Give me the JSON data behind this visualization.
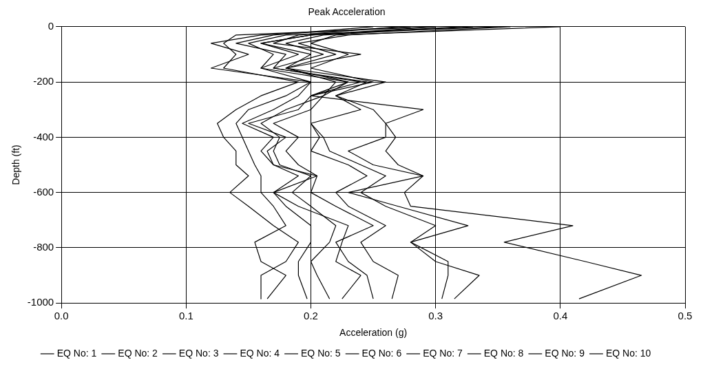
{
  "chart_data": {
    "type": "line",
    "title": "Peak Acceleration",
    "xlabel": "Acceleration (g)",
    "ylabel": "Depth (ft)",
    "xlim": [
      0,
      0.5
    ],
    "xticks": [
      {
        "value": 0,
        "label": "0.0"
      },
      {
        "value": 0.1,
        "label": "0.1"
      },
      {
        "value": 0.2,
        "label": "0.2"
      },
      {
        "value": 0.3,
        "label": "0.3"
      },
      {
        "value": 0.4,
        "label": "0.4"
      },
      {
        "value": 0.5,
        "label": "0.5"
      }
    ],
    "ylim": [
      -1000,
      0
    ],
    "yticks": [
      -1000,
      -800,
      -600,
      -400,
      -200,
      0
    ],
    "grid": true,
    "legend": "bottom",
    "marker": "none",
    "line_style": "solid",
    "series": [
      {
        "name": "EQ No: 1",
        "color": "#000000",
        "x": [
          0.3,
          0.14,
          0.13,
          0.14,
          0.13,
          0.19,
          0.16,
          0.14,
          0.125,
          0.13,
          0.14,
          0.14,
          0.15,
          0.135,
          0.15,
          0.17,
          0.19,
          0.18,
          0.16,
          0.16
        ],
        "values": [
          0,
          -30,
          -60,
          -100,
          -150,
          -200,
          -250,
          -300,
          -350,
          -400,
          -450,
          -500,
          -540,
          -600,
          -650,
          -720,
          -780,
          -850,
          -900,
          -985
        ]
      },
      {
        "name": "EQ No: 2",
        "color": "#000000",
        "x": [
          0.28,
          0.16,
          0.12,
          0.15,
          0.12,
          0.2,
          0.18,
          0.15,
          0.14,
          0.145,
          0.15,
          0.155,
          0.16,
          0.16,
          0.17,
          0.18,
          0.155,
          0.16,
          0.18,
          0.165
        ],
        "values": [
          0,
          -30,
          -60,
          -100,
          -150,
          -200,
          -250,
          -300,
          -350,
          -400,
          -450,
          -500,
          -540,
          -600,
          -650,
          -720,
          -780,
          -850,
          -900,
          -985
        ]
      },
      {
        "name": "EQ No: 3",
        "color": "#000000",
        "x": [
          0.35,
          0.18,
          0.15,
          0.17,
          0.16,
          0.2,
          0.19,
          0.17,
          0.145,
          0.17,
          0.16,
          0.17,
          0.19,
          0.17,
          0.18,
          0.2,
          0.2,
          0.19,
          0.19,
          0.197
        ],
        "values": [
          0,
          -30,
          -60,
          -100,
          -150,
          -200,
          -250,
          -300,
          -350,
          -400,
          -450,
          -500,
          -540,
          -600,
          -650,
          -720,
          -780,
          -850,
          -900,
          -985
        ]
      },
      {
        "name": "EQ No: 4",
        "color": "#000000",
        "x": [
          0.32,
          0.2,
          0.16,
          0.2,
          0.18,
          0.22,
          0.21,
          0.18,
          0.16,
          0.175,
          0.17,
          0.175,
          0.2,
          0.185,
          0.2,
          0.22,
          0.215,
          0.2,
          0.205,
          0.215
        ],
        "values": [
          0,
          -30,
          -60,
          -100,
          -150,
          -200,
          -250,
          -300,
          -350,
          -400,
          -450,
          -500,
          -540,
          -600,
          -650,
          -720,
          -780,
          -850,
          -900,
          -985
        ]
      },
      {
        "name": "EQ No: 5",
        "color": "#000000",
        "x": [
          0.25,
          0.17,
          0.14,
          0.18,
          0.17,
          0.24,
          0.2,
          0.19,
          0.15,
          0.18,
          0.165,
          0.17,
          0.205,
          0.17,
          0.19,
          0.23,
          0.225,
          0.22,
          0.24,
          0.225
        ],
        "values": [
          0,
          -30,
          -60,
          -100,
          -150,
          -200,
          -250,
          -300,
          -350,
          -400,
          -450,
          -500,
          -540,
          -600,
          -650,
          -720,
          -780,
          -850,
          -900,
          -985
        ]
      },
      {
        "name": "EQ No: 6",
        "color": "#000000",
        "x": [
          0.4,
          0.22,
          0.2,
          0.23,
          0.2,
          0.25,
          0.2,
          0.2,
          0.17,
          0.19,
          0.18,
          0.19,
          0.205,
          0.2,
          0.22,
          0.25,
          0.22,
          0.23,
          0.245,
          0.25
        ],
        "values": [
          0,
          -30,
          -60,
          -100,
          -150,
          -200,
          -250,
          -300,
          -350,
          -400,
          -450,
          -500,
          -540,
          -600,
          -650,
          -720,
          -780,
          -850,
          -900,
          -985
        ]
      },
      {
        "name": "EQ No: 7",
        "color": "#000000",
        "x": [
          0.27,
          0.19,
          0.17,
          0.24,
          0.18,
          0.26,
          0.22,
          0.24,
          0.2,
          0.207,
          0.2,
          0.23,
          0.245,
          0.22,
          0.23,
          0.26,
          0.24,
          0.25,
          0.27,
          0.265
        ],
        "values": [
          0,
          -30,
          -60,
          -100,
          -150,
          -200,
          -250,
          -300,
          -350,
          -400,
          -450,
          -500,
          -540,
          -600,
          -650,
          -720,
          -780,
          -850,
          -900,
          -985
        ]
      },
      {
        "name": "EQ No: 8",
        "color": "#000000",
        "x": [
          0.3,
          0.2,
          0.16,
          0.19,
          0.16,
          0.23,
          0.21,
          0.2,
          0.2,
          0.21,
          0.215,
          0.24,
          0.26,
          0.24,
          0.26,
          0.3,
          0.28,
          0.31,
          0.31,
          0.305
        ],
        "values": [
          0,
          -30,
          -60,
          -100,
          -150,
          -200,
          -250,
          -300,
          -350,
          -400,
          -450,
          -500,
          -540,
          -600,
          -650,
          -720,
          -780,
          -850,
          -900,
          -985
        ]
      },
      {
        "name": "EQ No: 9",
        "color": "#000000",
        "x": [
          0.33,
          0.21,
          0.18,
          0.21,
          0.17,
          0.245,
          0.22,
          0.25,
          0.26,
          0.26,
          0.23,
          0.25,
          0.29,
          0.23,
          0.27,
          0.326,
          0.28,
          0.3,
          0.335,
          0.315
        ],
        "values": [
          0,
          -30,
          -60,
          -100,
          -150,
          -200,
          -250,
          -300,
          -350,
          -400,
          -450,
          -500,
          -540,
          -600,
          -650,
          -720,
          -780,
          -850,
          -900,
          -985
        ]
      },
      {
        "name": "EQ No: 10",
        "color": "#000000",
        "x": [
          0.36,
          0.23,
          0.19,
          0.22,
          0.18,
          0.23,
          0.2,
          0.29,
          0.26,
          0.268,
          0.26,
          0.27,
          0.29,
          0.275,
          0.28,
          0.41,
          0.355,
          0.42,
          0.465,
          0.415
        ],
        "values": [
          0,
          -30,
          -60,
          -100,
          -150,
          -200,
          -250,
          -300,
          -350,
          -400,
          -450,
          -500,
          -540,
          -600,
          -650,
          -720,
          -780,
          -850,
          -900,
          -985
        ]
      }
    ]
  }
}
